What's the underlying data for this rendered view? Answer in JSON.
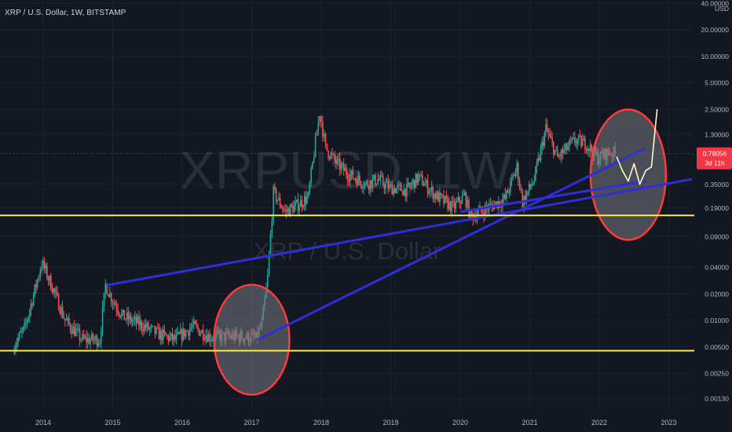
{
  "header": {
    "symbol_title": "XRP / U.S. Dollar, 1W, BITSTAMP"
  },
  "watermark": {
    "ticker": "XRPUSD, 1W",
    "name": "XRP / U.S. Dollar"
  },
  "price_scale": {
    "currency": "USD",
    "ticks": [
      "40.00000",
      "20.00000",
      "10.00000",
      "5.00000",
      "2.50000",
      "1.30000",
      "0.35000",
      "0.19000",
      "0.09000",
      "0.04000",
      "0.02000",
      "0.01000",
      "0.00500",
      "0.00250",
      "0.00130"
    ],
    "current_price": "0.78056",
    "countdown": "3d 11h"
  },
  "time_scale": {
    "labels": [
      "2014",
      "2015",
      "2016",
      "2017",
      "2018",
      "2019",
      "2020",
      "2021",
      "2022",
      "2023"
    ]
  },
  "colors": {
    "background": "#131722",
    "up": "#26a69a",
    "down": "#ef5350",
    "support_line": "#ffeb3b",
    "trend_line": "#2f2fd8",
    "highlight_circle": "#ff3b3b",
    "projection": "#fff9c4",
    "price_tag": "#f23645"
  },
  "chart_data": {
    "type": "candlestick",
    "title": "XRP / U.S. Dollar, 1W, BITSTAMP",
    "y_scale": "log",
    "ylim": [
      0.0011,
      45
    ],
    "xlim": [
      "2013-06",
      "2023-05"
    ],
    "current_price": 0.78056,
    "price_path": [
      [
        "2013-08",
        0.005
      ],
      [
        "2013-10",
        0.008
      ],
      [
        "2013-12",
        0.025
      ],
      [
        "2014-01",
        0.045
      ],
      [
        "2014-03",
        0.022
      ],
      [
        "2014-05",
        0.01
      ],
      [
        "2014-08",
        0.006
      ],
      [
        "2014-11",
        0.006
      ],
      [
        "2014-12",
        0.025
      ],
      [
        "2015-01",
        0.018
      ],
      [
        "2015-03",
        0.011
      ],
      [
        "2015-06",
        0.009
      ],
      [
        "2015-09",
        0.007
      ],
      [
        "2015-12",
        0.006
      ],
      [
        "2016-03",
        0.0085
      ],
      [
        "2016-06",
        0.0065
      ],
      [
        "2016-09",
        0.0065
      ],
      [
        "2016-12",
        0.0065
      ],
      [
        "2017-02",
        0.0062
      ],
      [
        "2017-03",
        0.009
      ],
      [
        "2017-04",
        0.03
      ],
      [
        "2017-05",
        0.28
      ],
      [
        "2017-07",
        0.17
      ],
      [
        "2017-09",
        0.2
      ],
      [
        "2017-11",
        0.25
      ],
      [
        "2017-12",
        0.8
      ],
      [
        "2018-01",
        2.3
      ],
      [
        "2018-02",
        0.9
      ],
      [
        "2018-04",
        0.6
      ],
      [
        "2018-06",
        0.45
      ],
      [
        "2018-09",
        0.35
      ],
      [
        "2018-11",
        0.4
      ],
      [
        "2019-01",
        0.32
      ],
      [
        "2019-04",
        0.3
      ],
      [
        "2019-06",
        0.42
      ],
      [
        "2019-09",
        0.26
      ],
      [
        "2019-12",
        0.19
      ],
      [
        "2020-02",
        0.26
      ],
      [
        "2020-03",
        0.15
      ],
      [
        "2020-06",
        0.19
      ],
      [
        "2020-09",
        0.24
      ],
      [
        "2020-11",
        0.55
      ],
      [
        "2020-12",
        0.22
      ],
      [
        "2021-02",
        0.4
      ],
      [
        "2021-04",
        1.5
      ],
      [
        "2021-06",
        0.7
      ],
      [
        "2021-09",
        1.1
      ],
      [
        "2021-11",
        1.0
      ],
      [
        "2022-01",
        0.7
      ],
      [
        "2022-03",
        0.82
      ],
      [
        "2022-04",
        0.78
      ]
    ],
    "support_lines": [
      0.155,
      0.0045
    ],
    "trend_lines": [
      {
        "from": [
          "2014-12",
          0.025
        ],
        "to": [
          "2023-05",
          0.4
        ]
      },
      {
        "from": [
          "2017-02",
          0.006
        ],
        "to": [
          "2022-09",
          0.9
        ]
      },
      {
        "from": [
          "2020-01",
          0.17
        ],
        "to": [
          "2022-09",
          0.38
        ]
      }
    ],
    "highlight_zones": [
      {
        "center": [
          "2017-01",
          0.006
        ]
      },
      {
        "center": [
          "2022-06",
          0.45
        ]
      }
    ],
    "projection_path": [
      [
        "2022-04",
        0.72
      ],
      [
        "2022-05",
        0.5
      ],
      [
        "2022-06",
        0.38
      ],
      [
        "2022-07",
        0.6
      ],
      [
        "2022-08",
        0.35
      ],
      [
        "2022-09",
        0.5
      ],
      [
        "2022-10",
        0.55
      ],
      [
        "2022-11",
        2.5
      ]
    ]
  }
}
